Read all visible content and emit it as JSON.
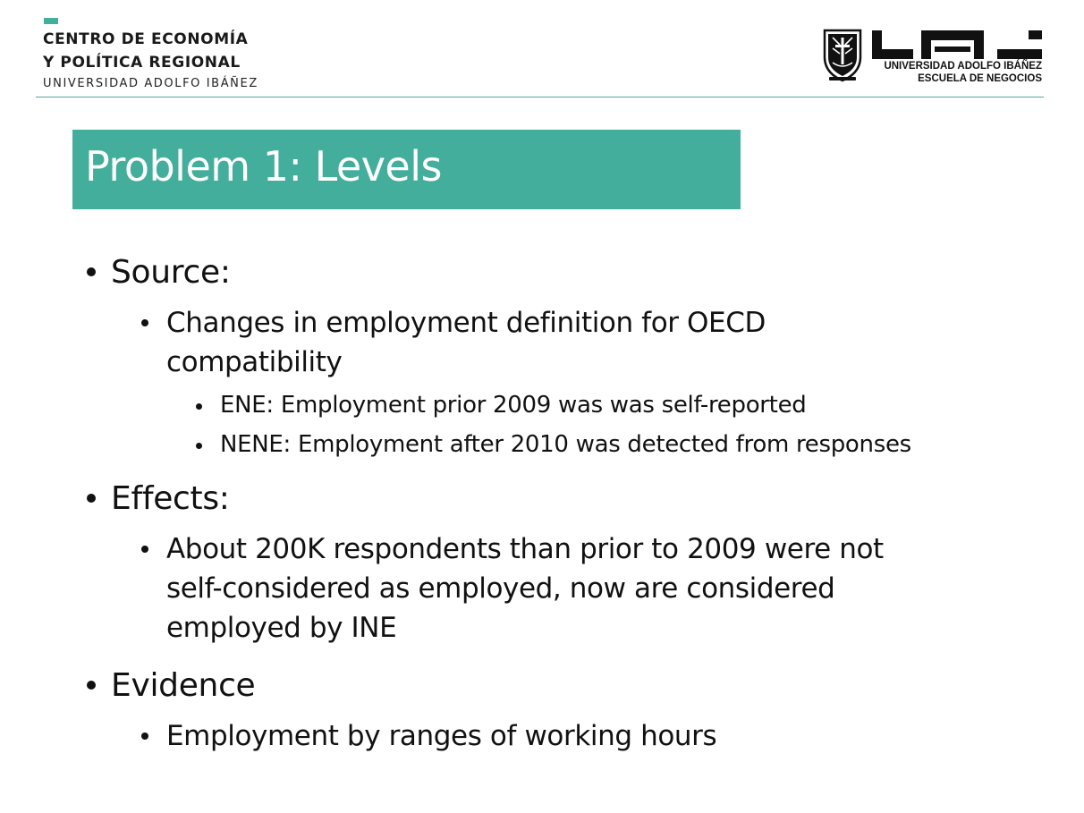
{
  "header": {
    "org_line1": "CENTRO DE ECONOMÍA",
    "org_line2": "Y POLÍTICA REGIONAL",
    "org_line3": "UNIVERSIDAD ADOLFO IBÁÑEZ",
    "logo_line1": "UNIVERSIDAD ADOLFO IBÁÑEZ",
    "logo_line2": "ESCUELA DE NEGOCIOS",
    "accent_color": "#43ae9c"
  },
  "slide": {
    "title": "Problem 1: Levels",
    "title_bg": "#43ae9c",
    "bullets": {
      "source": "Source:",
      "source_sub1_line1": "Changes in employment definition for OECD",
      "source_sub1_line2": "compatibility",
      "ene": "ENE: Employment prior 2009 was was self-reported",
      "nene": "NENE: Employment after 2010 was detected from responses",
      "effects": "Effects:",
      "effects_line1": "About 200K respondents than prior to 2009 were not",
      "effects_line2": "self-considered as employed, now are considered",
      "effects_line3": "employed by INE",
      "evidence": "Evidence",
      "evidence_sub1": "Employment by ranges of working hours"
    }
  }
}
